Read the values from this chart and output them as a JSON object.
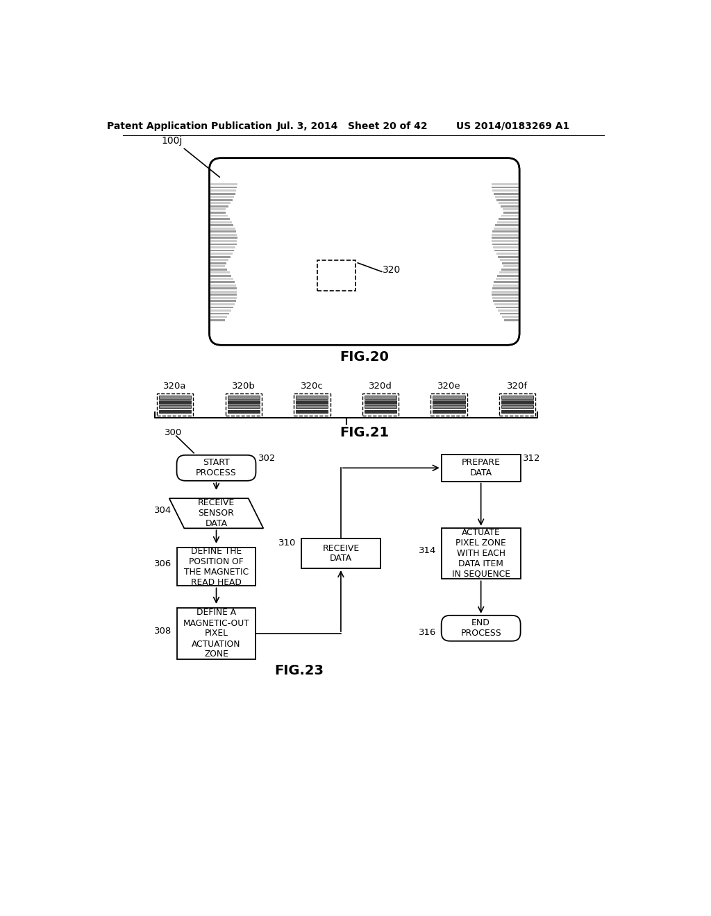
{
  "header_left": "Patent Application Publication",
  "header_mid": "Jul. 3, 2014   Sheet 20 of 42",
  "header_right": "US 2014/0183269 A1",
  "fig20_caption": "FIG.20",
  "fig21_caption": "FIG.21",
  "fig21_items": [
    "320a",
    "320b",
    "320c",
    "320d",
    "320e",
    "320f"
  ],
  "fig23_caption": "FIG.23",
  "bg_color": "#ffffff",
  "line_color": "#000000",
  "text_color": "#000000"
}
